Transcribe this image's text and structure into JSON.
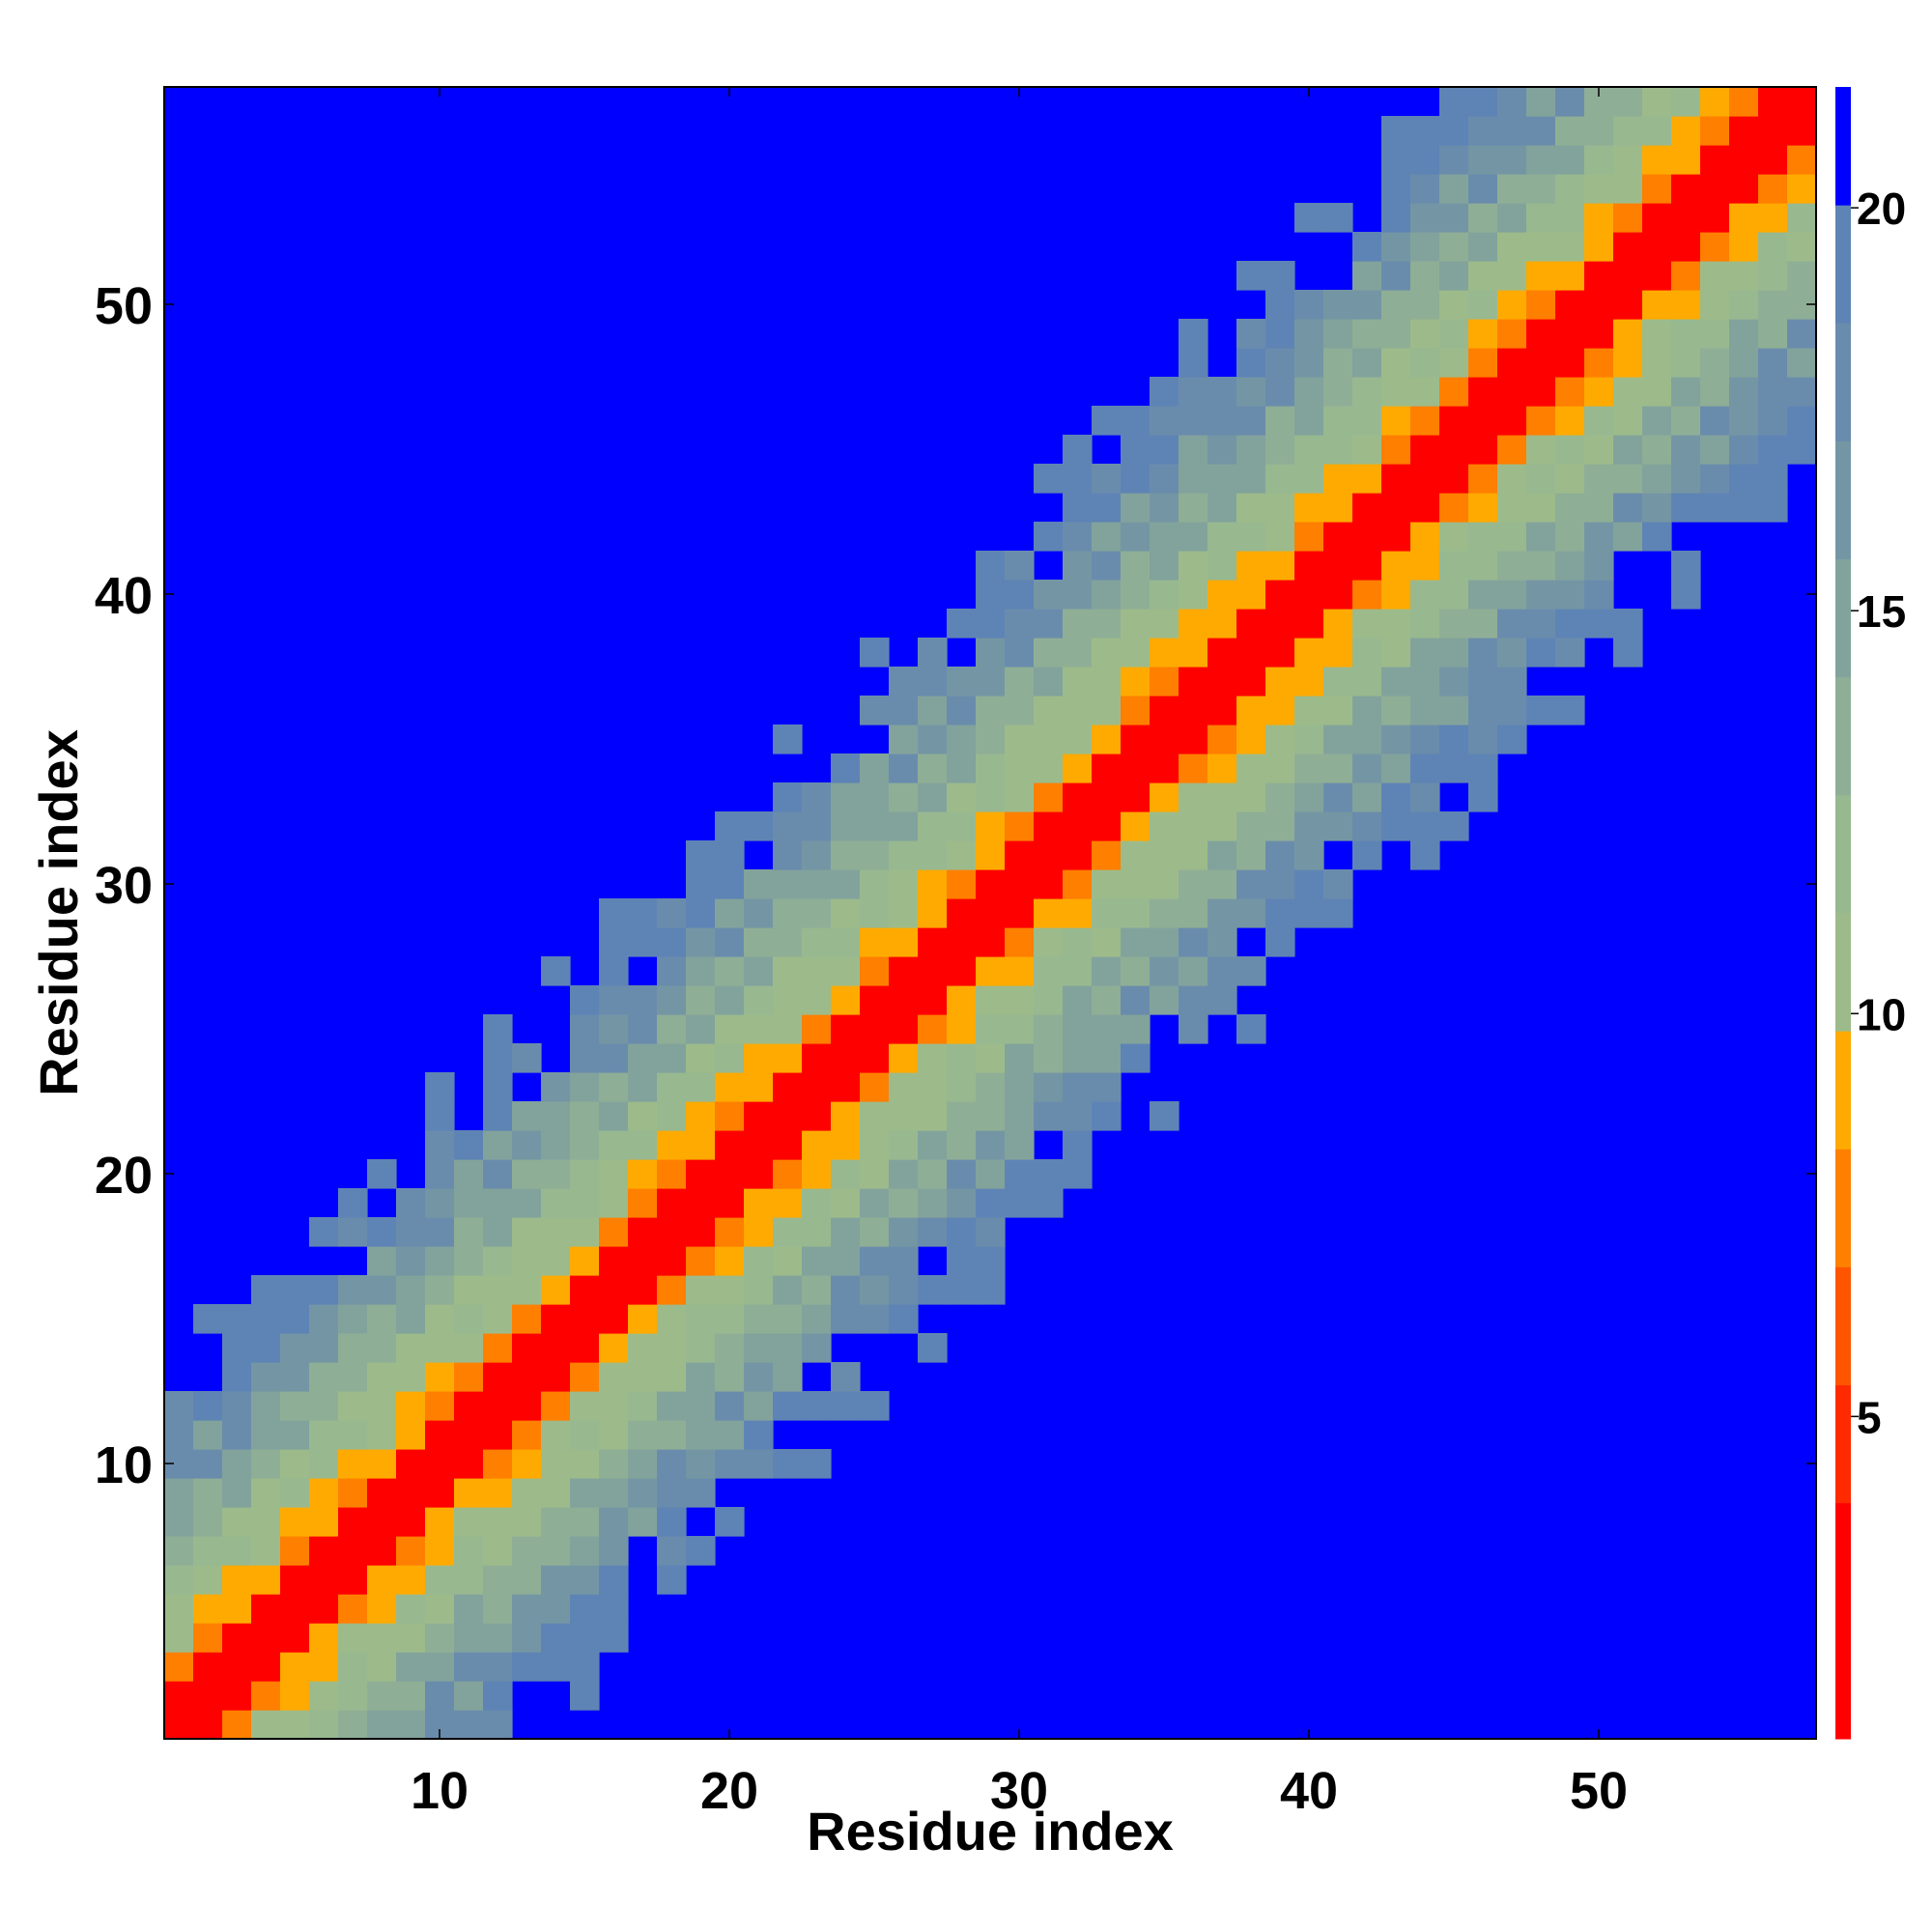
{
  "chart_data": {
    "type": "heatmap",
    "title": "",
    "xlabel": "Residue index",
    "ylabel": "Residue index",
    "n_residues": 57,
    "xlim": [
      0.5,
      57.5
    ],
    "ylim": [
      0.5,
      57.5
    ],
    "x_ticks": [
      10,
      20,
      30,
      40,
      50
    ],
    "y_ticks": [
      10,
      20,
      30,
      40,
      50
    ],
    "pattern": "distance matrix; value increases with separation |i-j| from the diagonal, saturated cells beyond cutoff",
    "colorbar": {
      "vmin": 1,
      "vmax": 21.5,
      "ticks": [
        5,
        10,
        15,
        20
      ],
      "colors": [
        "#ff0000",
        "#ff0000",
        "#ff2a00",
        "#ff5500",
        "#ff7f00",
        "#ffaa00",
        "#9dbb8a",
        "#98b890",
        "#8fae96",
        "#82a39c",
        "#7496a4",
        "#6a8cac",
        "#5e84b5",
        "#0000ff"
      ]
    },
    "colors": {
      "near": "#ff0000",
      "saturated": "#0000ff"
    }
  }
}
